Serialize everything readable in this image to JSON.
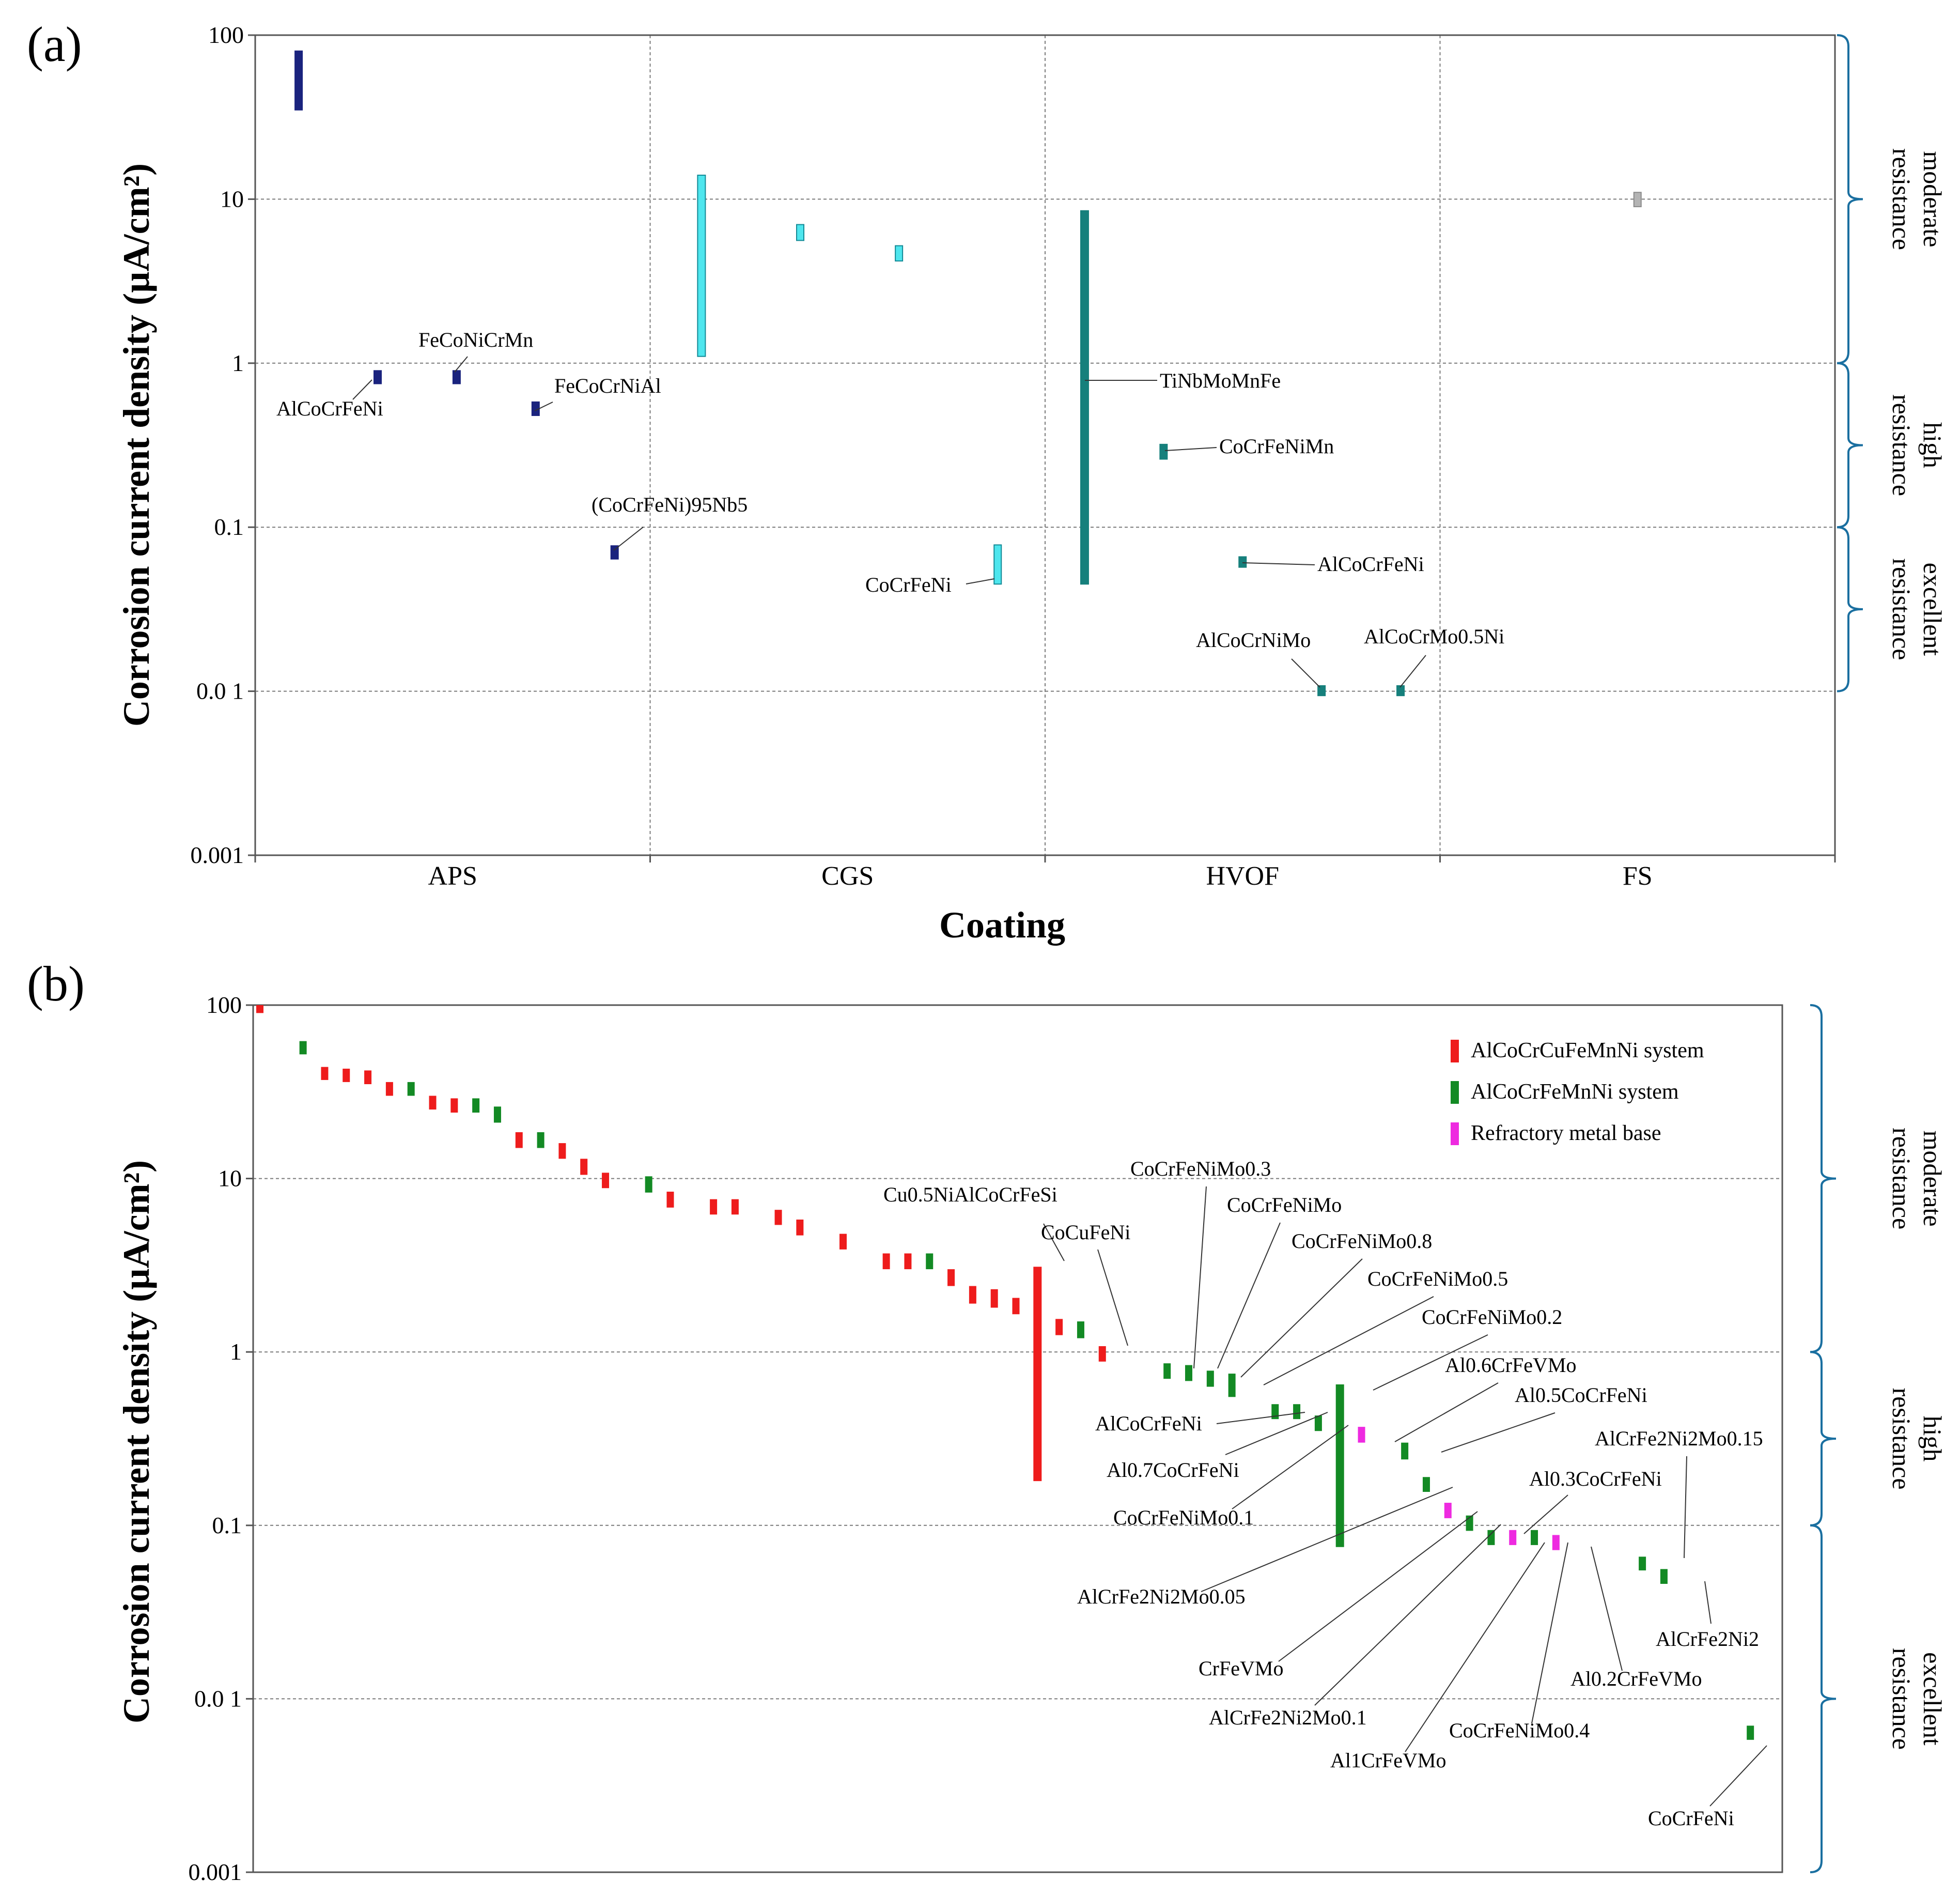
{
  "chart_data": [
    {
      "panel": "(a)",
      "type": "floating-bar",
      "title": "",
      "ylabel": "Corrosion current density (µA/cm²)",
      "xlabel": "Coating",
      "yscale": "log",
      "ylim": [
        0.001,
        100
      ],
      "ytick_labels": [
        "100",
        "10",
        "1",
        "0.1",
        "0.0 1",
        "0.001"
      ],
      "grid": true,
      "categories": [
        "APS",
        "CGS",
        "HVOF",
        "FS"
      ],
      "colors": {
        "APS": "#1a237e",
        "CGS": "#4ee6ee",
        "HVOF": "#16807c",
        "FS": "#b4b4b4"
      },
      "bars": [
        {
          "group": "APS",
          "x": 0.11,
          "low": 35,
          "high": 80,
          "label": ""
        },
        {
          "group": "APS",
          "x": 0.31,
          "low": 0.75,
          "high": 0.9,
          "label": "AlCoCrFeNi"
        },
        {
          "group": "APS",
          "x": 0.51,
          "low": 0.75,
          "high": 0.9,
          "label": "FeCoNiCrMn"
        },
        {
          "group": "APS",
          "x": 0.71,
          "low": 0.48,
          "high": 0.58,
          "label": "FeCoCrNiAl"
        },
        {
          "group": "APS",
          "x": 0.91,
          "low": 0.064,
          "high": 0.077,
          "label": "(CoCrFeNi)95Nb5"
        },
        {
          "group": "CGS",
          "x": 1.13,
          "low": 1.1,
          "high": 14,
          "label": ""
        },
        {
          "group": "CGS",
          "x": 1.38,
          "low": 5.6,
          "high": 7,
          "label": ""
        },
        {
          "group": "CGS",
          "x": 1.63,
          "low": 4.2,
          "high": 5.2,
          "label": ""
        },
        {
          "group": "CGS",
          "x": 1.88,
          "low": 0.045,
          "high": 0.078,
          "label": "CoCrFeNi"
        },
        {
          "group": "HVOF",
          "x": 2.1,
          "low": 0.045,
          "high": 8.5,
          "label": "TiNbMoMnFe"
        },
        {
          "group": "HVOF",
          "x": 2.3,
          "low": 0.26,
          "high": 0.32,
          "label": "CoCrFeNiMn"
        },
        {
          "group": "HVOF",
          "x": 2.5,
          "low": 0.057,
          "high": 0.066,
          "label": "AlCoCrFeNi"
        },
        {
          "group": "HVOF",
          "x": 2.7,
          "low": 0.0094,
          "high": 0.0108,
          "label": "AlCoCrNiMo"
        },
        {
          "group": "HVOF",
          "x": 2.9,
          "low": 0.0094,
          "high": 0.0108,
          "label": "AlCoCrMo0.5Ni"
        },
        {
          "group": "FS",
          "x": 3.5,
          "low": 9,
          "high": 11,
          "label": ""
        }
      ],
      "resistance_bands": [
        {
          "label1": "moderate",
          "label2": "resistance",
          "from": 1,
          "to": 100
        },
        {
          "label1": "high",
          "label2": "resistance",
          "from": 0.1,
          "to": 1
        },
        {
          "label1": "excellent",
          "label2": "resistance",
          "from": 0.01,
          "to": 0.1
        }
      ]
    },
    {
      "panel": "(b)",
      "type": "floating-bar",
      "title": "",
      "ylabel": "Corrosion current density (µA/cm²)",
      "xlabel": "",
      "yscale": "log",
      "ylim": [
        0.001,
        100
      ],
      "ytick_labels": [
        "100",
        "10",
        "1",
        "0.1",
        "0.0 1",
        "0.001"
      ],
      "grid": true,
      "legend_position": "top-right",
      "series": [
        {
          "name": "AlCoCrCuFeMnNi system",
          "color": "#ee1c1c"
        },
        {
          "name": "AlCoCrFeMnNi system",
          "color": "#138a24"
        },
        {
          "name": "Refractory metal base",
          "color": "#ee2ae0"
        }
      ],
      "bars": [
        {
          "s": 0,
          "x": 0,
          "low": 90,
          "high": 100,
          "label": ""
        },
        {
          "s": 1,
          "x": 2,
          "low": 52,
          "high": 62,
          "label": ""
        },
        {
          "s": 0,
          "x": 3,
          "low": 37,
          "high": 44,
          "label": ""
        },
        {
          "s": 0,
          "x": 4,
          "low": 36,
          "high": 43,
          "label": ""
        },
        {
          "s": 0,
          "x": 5,
          "low": 35,
          "high": 42,
          "label": ""
        },
        {
          "s": 0,
          "x": 6,
          "low": 30,
          "high": 36,
          "label": ""
        },
        {
          "s": 1,
          "x": 7,
          "low": 30,
          "high": 36,
          "label": ""
        },
        {
          "s": 0,
          "x": 8,
          "low": 25,
          "high": 30,
          "label": ""
        },
        {
          "s": 0,
          "x": 9,
          "low": 24,
          "high": 29,
          "label": ""
        },
        {
          "s": 1,
          "x": 10,
          "low": 24,
          "high": 29,
          "label": ""
        },
        {
          "s": 1,
          "x": 11,
          "low": 21,
          "high": 26,
          "label": ""
        },
        {
          "s": 0,
          "x": 12,
          "low": 15,
          "high": 18.5,
          "label": ""
        },
        {
          "s": 1,
          "x": 13,
          "low": 15,
          "high": 18.5,
          "label": ""
        },
        {
          "s": 0,
          "x": 14,
          "low": 13,
          "high": 16,
          "label": ""
        },
        {
          "s": 0,
          "x": 15,
          "low": 10.5,
          "high": 13,
          "label": ""
        },
        {
          "s": 0,
          "x": 16,
          "low": 8.8,
          "high": 10.8,
          "label": ""
        },
        {
          "s": 1,
          "x": 18,
          "low": 8.3,
          "high": 10.3,
          "label": ""
        },
        {
          "s": 0,
          "x": 19,
          "low": 6.8,
          "high": 8.4,
          "label": ""
        },
        {
          "s": 0,
          "x": 21,
          "low": 6.2,
          "high": 7.6,
          "label": ""
        },
        {
          "s": 0,
          "x": 22,
          "low": 6.2,
          "high": 7.6,
          "label": ""
        },
        {
          "s": 0,
          "x": 24,
          "low": 5.4,
          "high": 6.6,
          "label": ""
        },
        {
          "s": 0,
          "x": 25,
          "low": 4.7,
          "high": 5.8,
          "label": ""
        },
        {
          "s": 0,
          "x": 27,
          "low": 3.9,
          "high": 4.8,
          "label": ""
        },
        {
          "s": 0,
          "x": 29,
          "low": 3.0,
          "high": 3.7,
          "label": ""
        },
        {
          "s": 0,
          "x": 30,
          "low": 3.0,
          "high": 3.7,
          "label": ""
        },
        {
          "s": 1,
          "x": 31,
          "low": 3.0,
          "high": 3.7,
          "label": ""
        },
        {
          "s": 0,
          "x": 32,
          "low": 2.4,
          "high": 3.0,
          "label": ""
        },
        {
          "s": 0,
          "x": 33,
          "low": 1.9,
          "high": 2.4,
          "label": ""
        },
        {
          "s": 0,
          "x": 34,
          "low": 1.8,
          "high": 2.3,
          "label": ""
        },
        {
          "s": 0,
          "x": 35,
          "low": 1.65,
          "high": 2.05,
          "label": ""
        },
        {
          "s": 0,
          "x": 36,
          "low": 0.18,
          "high": 3.1,
          "label": "Cu0.5NiAlCoCrFeSi"
        },
        {
          "s": 0,
          "x": 37,
          "low": 1.25,
          "high": 1.55,
          "label": ""
        },
        {
          "s": 1,
          "x": 38,
          "low": 1.2,
          "high": 1.5,
          "label": ""
        },
        {
          "s": 0,
          "x": 39,
          "low": 0.88,
          "high": 1.08,
          "label": "CoCuFeNi"
        },
        {
          "s": 1,
          "x": 42,
          "low": 0.7,
          "high": 0.86,
          "label": "CoCrFeNiMo0.3"
        },
        {
          "s": 1,
          "x": 43,
          "low": 0.68,
          "high": 0.84,
          "label": "CoCrFeNiMo"
        },
        {
          "s": 1,
          "x": 44,
          "low": 0.63,
          "high": 0.78,
          "label": "CoCrFeNiMo0.8"
        },
        {
          "s": 1,
          "x": 45,
          "low": 0.55,
          "high": 0.75,
          "label": "CoCrFeNiMo0.5"
        },
        {
          "s": 1,
          "x": 47,
          "low": 0.41,
          "high": 0.5,
          "label": "AlCoCrFeNi"
        },
        {
          "s": 1,
          "x": 48,
          "low": 0.41,
          "high": 0.5,
          "label": "Al0.7CoCrFeNi"
        },
        {
          "s": 1,
          "x": 49,
          "low": 0.35,
          "high": 0.43,
          "label": "CoCrFeNiMo0.1"
        },
        {
          "s": 1,
          "x": 50,
          "low": 0.075,
          "high": 0.65,
          "label": "CoCrFeNiMo0.2"
        },
        {
          "s": 2,
          "x": 51,
          "low": 0.3,
          "high": 0.37,
          "label": "Al0.6CrFeVMo"
        },
        {
          "s": 1,
          "x": 53,
          "low": 0.24,
          "high": 0.3,
          "label": "Al0.5CoCrFeNi"
        },
        {
          "s": 1,
          "x": 54,
          "low": 0.156,
          "high": 0.19,
          "label": "AlCrFe2Ni2Mo0.05"
        },
        {
          "s": 2,
          "x": 55,
          "low": 0.11,
          "high": 0.135,
          "label": "CrFeVMo"
        },
        {
          "s": 1,
          "x": 56,
          "low": 0.093,
          "high": 0.114,
          "label": "AlCrFe2Ni2Mo0.1"
        },
        {
          "s": 1,
          "x": 57,
          "low": 0.077,
          "high": 0.094,
          "label": "Al0.3CoCrFeNi"
        },
        {
          "s": 2,
          "x": 58,
          "low": 0.077,
          "high": 0.094,
          "label": "Al1CrFeVMo"
        },
        {
          "s": 1,
          "x": 59,
          "low": 0.077,
          "high": 0.094,
          "label": "CoCrFeNiMo0.4"
        },
        {
          "s": 2,
          "x": 60,
          "low": 0.072,
          "high": 0.088,
          "label": "Al0.2CrFeVMo"
        },
        {
          "s": 1,
          "x": 64,
          "low": 0.055,
          "high": 0.066,
          "label": "AlCrFe2Ni2Mo0.15"
        },
        {
          "s": 1,
          "x": 65,
          "low": 0.046,
          "high": 0.056,
          "label": "AlCrFe2Ni2"
        },
        {
          "s": 1,
          "x": 69,
          "low": 0.0058,
          "high": 0.007,
          "label": "CoCrFeNi"
        }
      ],
      "resistance_bands": [
        {
          "label1": "moderate",
          "label2": "resistance",
          "from": 1,
          "to": 100
        },
        {
          "label1": "high",
          "label2": "resistance",
          "from": 0.1,
          "to": 1
        },
        {
          "label1": "excellent",
          "label2": "resistance",
          "from": 0.001,
          "to": 0.1
        }
      ]
    }
  ]
}
